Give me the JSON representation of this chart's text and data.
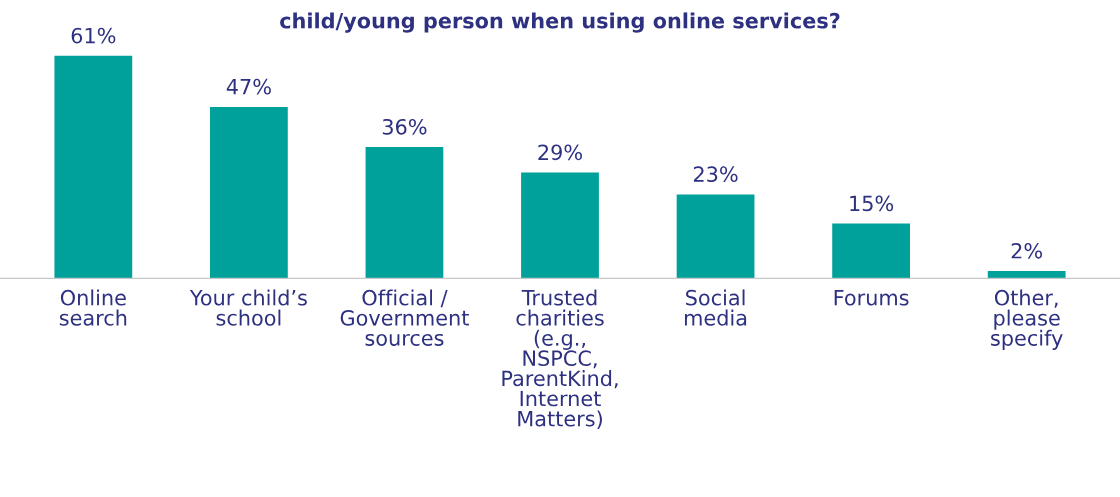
{
  "chart_data": {
    "type": "bar",
    "title": "child/young person when using online services?",
    "categories": [
      "Online\nsearch",
      "Your child’s\nschool",
      "Official /\nGovernment\nsources",
      "Trusted\ncharities\n(e.g.,\nNSPCC,\nParentKind,\nInternet\nMatters)",
      "Social\nmedia",
      "Forums",
      "Other,\nplease\nspecify"
    ],
    "values": [
      61,
      47,
      36,
      29,
      23,
      15,
      2
    ],
    "value_labels": [
      "61%",
      "47%",
      "36%",
      "29%",
      "23%",
      "15%",
      "2%"
    ],
    "color": "#00a19a",
    "grid": false,
    "legend": false
  }
}
